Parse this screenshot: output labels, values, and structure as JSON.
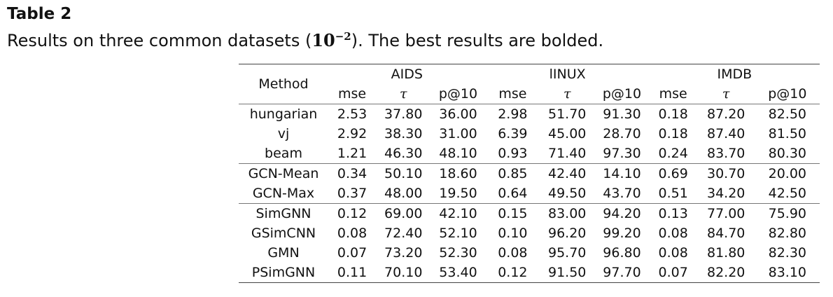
{
  "caption": {
    "label": "Table 2",
    "text_before": "Results on three common datasets (",
    "math_base": "10",
    "math_exp": "−2",
    "text_after": "). The best results are bolded."
  },
  "table": {
    "method_header": "Method",
    "datasets": [
      "AIDS",
      "lINUX",
      "IMDB"
    ],
    "metrics": [
      "mse",
      "τ",
      "p@10",
      "mse",
      "τ",
      "p@10",
      "mse",
      "τ",
      "p@10"
    ],
    "rows": [
      {
        "method": "hungarian",
        "values": [
          "2.53",
          "37.80",
          "36.00",
          "2.98",
          "51.70",
          "91.30",
          "0.18",
          "87.20",
          "82.50"
        ],
        "bold": [],
        "group_start": true
      },
      {
        "method": "vj",
        "values": [
          "2.92",
          "38.30",
          "31.00",
          "6.39",
          "45.00",
          "28.70",
          "0.18",
          "87.40",
          "81.50"
        ],
        "bold": [],
        "group_start": false
      },
      {
        "method": "beam",
        "values": [
          "1.21",
          "46.30",
          "48.10",
          "0.93",
          "71.40",
          "97.30",
          "0.24",
          "83.70",
          "80.30"
        ],
        "bold": [],
        "group_start": false
      },
      {
        "method": "GCN-Mean",
        "values": [
          "0.34",
          "50.10",
          "18.60",
          "0.85",
          "42.40",
          "14.10",
          "0.69",
          "30.70",
          "20.00"
        ],
        "bold": [],
        "group_start": true
      },
      {
        "method": "GCN-Max",
        "values": [
          "0.37",
          "48.00",
          "19.50",
          "0.64",
          "49.50",
          "43.70",
          "0.51",
          "34.20",
          "42.50"
        ],
        "bold": [],
        "group_start": false
      },
      {
        "method": "SimGNN",
        "values": [
          "0.12",
          "69.00",
          "42.10",
          "0.15",
          "83.00",
          "94.20",
          "0.13",
          "77.00",
          "75.90"
        ],
        "bold": [],
        "group_start": true
      },
      {
        "method": "GSimCNN",
        "values": [
          "0.08",
          "72.40",
          "52.10",
          "0.10",
          "96.20",
          "99.20",
          "0.08",
          "84.70",
          "82.80"
        ],
        "bold": [
          4,
          5,
          7
        ],
        "group_start": false
      },
      {
        "method": "GMN",
        "values": [
          "0.07",
          "73.20",
          "52.30",
          "0.08",
          "95.70",
          "96.80",
          "0.08",
          "81.80",
          "82.30"
        ],
        "bold": [
          0,
          1,
          3
        ],
        "group_start": false
      },
      {
        "method": "PSimGNN",
        "values": [
          "0.11",
          "70.10",
          "53.40",
          "0.12",
          "91.50",
          "97.70",
          "0.07",
          "82.20",
          "83.10"
        ],
        "bold": [
          2,
          6,
          8
        ],
        "group_start": false
      }
    ]
  }
}
